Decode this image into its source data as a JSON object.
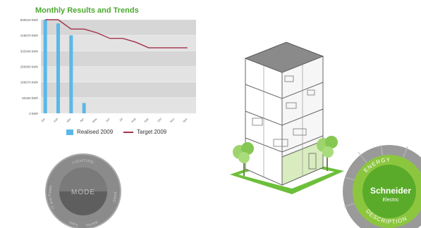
{
  "chart_title": "Monthly Results and Trends",
  "chart_data": {
    "type": "bar",
    "title": "Monthly Results and Trends",
    "y_tick_labels": [
      "0 kWh",
      "83330 kWh",
      "166670 kWh",
      "250000 kWh",
      "333340 kWh",
      "416670 kWh",
      "500010 kWh"
    ],
    "ylim": [
      0,
      500010
    ],
    "categories": [
      "Jan",
      "Feb",
      "Mar",
      "Apr",
      "May",
      "Jun",
      "Jul",
      "Aug",
      "Sep",
      "Oct",
      "Nov",
      "Dec"
    ],
    "series": [
      {
        "name": "Realised 2009",
        "kind": "bar",
        "values": [
          500010,
          480000,
          416670,
          55000,
          null,
          null,
          null,
          null,
          null,
          null,
          null,
          null
        ]
      },
      {
        "name": "Target 2009",
        "kind": "line",
        "values": [
          500010,
          500010,
          450000,
          450000,
          430000,
          400000,
          400000,
          380000,
          350000,
          350000,
          350000,
          350000
        ]
      }
    ],
    "grid": true,
    "legend_position": "bottom",
    "colors": {
      "bar": "#5bb8e6",
      "line": "#a3304a",
      "plot_bg": "#e3e3e3",
      "title": "#4aa82e"
    }
  },
  "legend": {
    "realised": "Realised 2009",
    "target": "Target 2009"
  },
  "mode_dial": {
    "center_label": "MODE",
    "ring_labels": [
      "LIGHTING",
      "HVAC",
      "Alarms",
      "Fans",
      "IT and Power"
    ]
  },
  "schneider": {
    "brand_name": "Schneider",
    "brand_sub": "Electric",
    "top_label": "ENERGY",
    "bottom_label": "DESCRIPTION",
    "colors": {
      "outer": "#8cc63f",
      "inner": "#5aab2a",
      "ring": "#8e8e8e"
    }
  }
}
